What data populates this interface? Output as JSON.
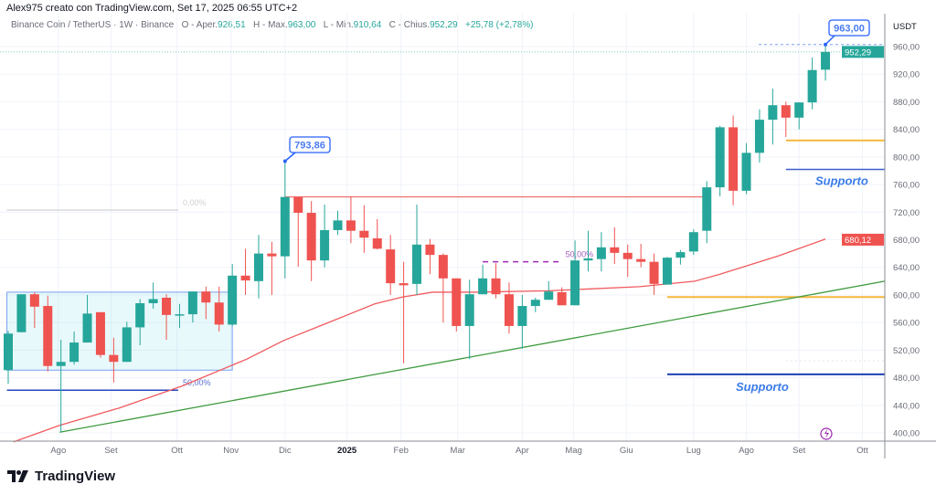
{
  "header": {
    "credit": "Alex975 creato con TradingView.com, Set 17, 2025 06:55 UTC+2"
  },
  "legend": {
    "symbol": "Binance Coin / TetherUS · 1W · Binance",
    "open_label": "O - Aper.",
    "open": "926,51",
    "high_label": "H - Max.",
    "high": "963,00",
    "low_label": "L - Min.",
    "low": "910,64",
    "close_label": "C - Chius.",
    "close": "952,29",
    "change": "+25,78 (+2,78%)"
  },
  "logo": {
    "text": "TradingView"
  },
  "colors": {
    "up": "#26a69a",
    "down": "#ef5350",
    "ma": "#f05a5f",
    "trend": "#3e9a3e",
    "support": "#1e40b0",
    "orange": "#f6b73c",
    "callout": "#2962ff",
    "fib": "#9c27b0"
  },
  "chart_data": {
    "type": "candlestick",
    "currency": "USDT",
    "ylim": [
      386,
      985
    ],
    "y_ticks": [
      "960,00",
      "920,00",
      "880,00",
      "840,00",
      "800,00",
      "760,00",
      "720,00",
      "680,00",
      "640,00",
      "600,00",
      "560,00",
      "520,00",
      "480,00",
      "440,00",
      "400,00"
    ],
    "x_ticks": [
      {
        "label": "Ago",
        "index": 3.8
      },
      {
        "label": "Set",
        "index": 7.8
      },
      {
        "label": "Ott",
        "index": 12.8
      },
      {
        "label": "Nov",
        "index": 16.9
      },
      {
        "label": "Dic",
        "index": 21
      },
      {
        "label": "2025",
        "index": 25.7,
        "bold": true
      },
      {
        "label": "Feb",
        "index": 29.8
      },
      {
        "label": "Mar",
        "index": 34.1
      },
      {
        "label": "Apr",
        "index": 39
      },
      {
        "label": "Mag",
        "index": 42.9
      },
      {
        "label": "Giu",
        "index": 46.9
      },
      {
        "label": "Lug",
        "index": 52
      },
      {
        "label": "Ago",
        "index": 56
      },
      {
        "label": "Set",
        "index": 60
      },
      {
        "label": "Ott",
        "index": 64.8
      }
    ],
    "ohlc": [
      [
        491,
        548,
        471,
        544
      ],
      [
        546,
        601,
        546,
        601
      ],
      [
        601,
        604,
        552,
        583
      ],
      [
        584,
        599,
        489,
        497
      ],
      [
        497,
        535,
        401,
        503
      ],
      [
        503,
        547,
        499,
        531
      ],
      [
        531,
        600,
        531,
        573
      ],
      [
        575,
        575,
        509,
        513
      ],
      [
        513,
        538,
        473,
        503
      ],
      [
        503,
        561,
        503,
        553
      ],
      [
        553,
        594,
        527,
        588
      ],
      [
        588,
        618,
        580,
        594
      ],
      [
        596,
        601,
        535,
        571
      ],
      [
        571,
        587,
        552,
        572
      ],
      [
        572,
        605,
        560,
        605
      ],
      [
        605,
        612,
        565,
        589
      ],
      [
        589,
        612,
        547,
        557
      ],
      [
        557,
        645,
        555,
        628
      ],
      [
        628,
        667,
        600,
        621
      ],
      [
        620,
        687,
        595,
        660
      ],
      [
        660,
        677,
        600,
        656
      ],
      [
        656,
        793.86,
        624,
        742
      ],
      [
        742,
        742,
        641,
        719
      ],
      [
        719,
        736,
        620,
        650
      ],
      [
        650,
        731,
        640,
        694
      ],
      [
        694,
        722,
        687,
        708
      ],
      [
        708,
        743,
        675,
        693
      ],
      [
        693,
        730,
        661,
        683
      ],
      [
        682,
        710,
        666,
        667
      ],
      [
        666,
        687,
        600,
        617
      ],
      [
        617,
        648,
        501,
        614
      ],
      [
        616,
        731,
        600,
        673
      ],
      [
        673,
        681,
        630,
        658
      ],
      [
        658,
        660,
        560,
        624
      ],
      [
        624,
        624,
        547,
        555
      ],
      [
        555,
        622,
        507,
        601
      ],
      [
        601,
        644,
        601,
        624
      ],
      [
        624,
        646,
        595,
        601
      ],
      [
        601,
        618,
        544,
        555
      ],
      [
        555,
        600,
        522,
        584
      ],
      [
        584,
        596,
        575,
        593
      ],
      [
        593,
        620,
        593,
        605
      ],
      [
        604,
        611,
        585,
        585
      ],
      [
        585,
        679,
        585,
        650
      ],
      [
        650,
        693,
        634,
        653
      ],
      [
        652,
        691,
        634,
        669
      ],
      [
        669,
        698,
        645,
        661
      ],
      [
        661,
        673,
        626,
        652
      ],
      [
        652,
        674,
        640,
        648
      ],
      [
        648,
        660,
        600,
        616
      ],
      [
        615,
        655,
        615,
        654
      ],
      [
        654,
        665,
        644,
        662
      ],
      [
        663,
        695,
        658,
        691
      ],
      [
        693,
        765,
        675,
        756
      ],
      [
        756,
        845,
        743,
        843
      ],
      [
        843,
        860,
        730,
        751
      ],
      [
        751,
        820,
        746,
        806
      ],
      [
        806,
        869,
        792,
        854
      ],
      [
        854,
        899,
        818,
        875
      ],
      [
        875,
        880,
        829,
        857
      ],
      [
        857,
        879,
        840,
        879
      ],
      [
        879,
        944,
        869,
        926
      ],
      [
        926.51,
        963,
        910.64,
        952.29
      ]
    ],
    "moving_average": {
      "last_value": "680,12",
      "points": [
        [
          0.4,
          387
        ],
        [
          3.9,
          411
        ],
        [
          8.4,
          436
        ],
        [
          13.2,
          468
        ],
        [
          18.1,
          507
        ],
        [
          20.9,
          534
        ],
        [
          24.3,
          560
        ],
        [
          27.8,
          587
        ],
        [
          29.9,
          597
        ],
        [
          32.2,
          604
        ],
        [
          35.4,
          604
        ],
        [
          41,
          606
        ],
        [
          47.9,
          612
        ],
        [
          52.1,
          620
        ],
        [
          54,
          630
        ],
        [
          58.5,
          657
        ],
        [
          62,
          681
        ]
      ]
    },
    "trendline": {
      "from": [
        3.9,
        401
      ],
      "to": [
        66.5,
        620
      ]
    },
    "last_price": "952,29",
    "annotations": {
      "high_callout_1": {
        "text": "793,86",
        "index": 21,
        "price": 793.86
      },
      "high_callout_2": {
        "text": "963,00",
        "index": 62,
        "price": 963
      },
      "range_box": {
        "from_index": -0.1,
        "to_index": 17,
        "top": 604,
        "bottom": 491
      },
      "fib_0": {
        "text": "0,00%",
        "price": 723,
        "from_index": -0.1,
        "to_index": 12.9
      },
      "fib_50_a": {
        "text": "50,00%",
        "price": 462,
        "from_index": -0.1,
        "to_index": 12.9
      },
      "fib_50_b": {
        "text": "50,00%",
        "price": 648,
        "from_index": 36,
        "to_index": 42
      },
      "resistance": {
        "price": 742,
        "from_index": 21,
        "to_index": 52.8
      },
      "orange_1": {
        "price": 824,
        "from_index": 59
      },
      "orange_2": {
        "price": 597,
        "from_index": 50
      },
      "support_1": {
        "text": "Supporto",
        "price": 782,
        "from_index": 59
      },
      "support_2": {
        "text": "Supporto",
        "price": 485,
        "from_index": 50
      }
    }
  }
}
